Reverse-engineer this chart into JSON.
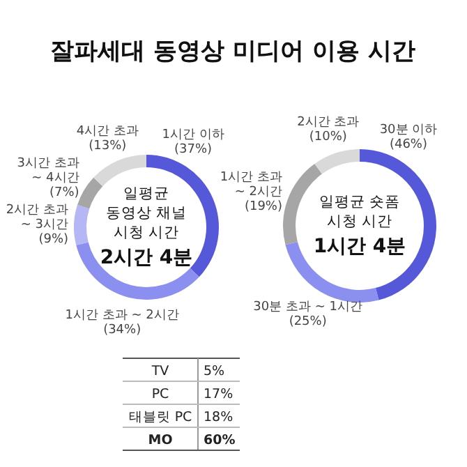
{
  "chart_data": [
    {
      "type": "donut",
      "title": "잘파세대 동영상 미디어 이용 시간",
      "categories": [
        "1시간 이하",
        "1시간 초과 ~ 2시간",
        "2시간 초과 ~ 3시간",
        "3시간 초과 ~ 4시간",
        "4시간 초과"
      ],
      "values": [
        37,
        34,
        9,
        7,
        13
      ],
      "colors": [
        "#5558d9",
        "#8b8ff0",
        "#b4b6f5",
        "#a6a6a6",
        "#d9d9d9"
      ],
      "value_labels": [
        "(37%)",
        "(34%)",
        "(9%)",
        "(7%)",
        "(13%)"
      ],
      "annotations": [
        "일평균",
        "동영상 채널",
        "시청 시간",
        "2시간 4분"
      ]
    },
    {
      "type": "donut",
      "categories": [
        "30분 이하",
        "30분 초과 ~ 1시간",
        "1시간 초과 ~ 2시간",
        "2시간 초과"
      ],
      "values": [
        46,
        25,
        19,
        10
      ],
      "colors": [
        "#5558d9",
        "#8b8ff0",
        "#a6a6a6",
        "#d9d9d9"
      ],
      "value_labels": [
        "(46%)",
        "(25%)",
        "(19%)",
        "(10%)"
      ],
      "annotations": [
        "일평균 숏폼",
        "시청 시간",
        "1시간 4분"
      ]
    },
    {
      "type": "other",
      "categories": [
        "TV",
        "PC",
        "태블릿 PC",
        "MO"
      ],
      "value_labels": [
        "5%",
        "17%",
        "18%",
        "60%"
      ]
    }
  ]
}
